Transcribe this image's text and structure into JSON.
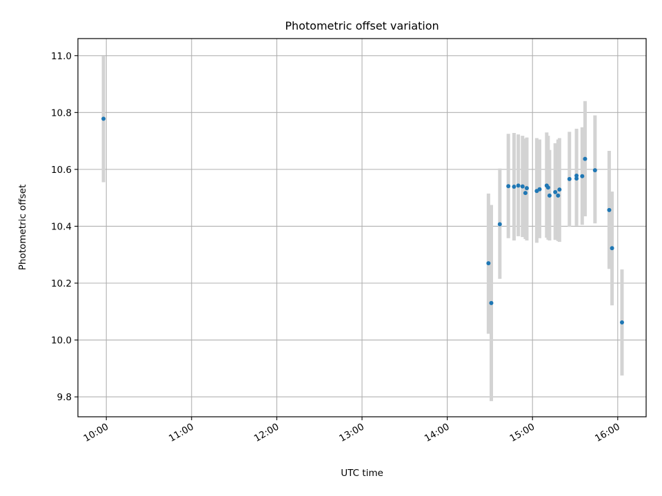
{
  "chart_data": {
    "type": "scatter",
    "title": "Photometric offset variation",
    "xlabel": "UTC time",
    "ylabel": "Photometric offset",
    "x_axis": "time",
    "xlim": [
      "09:40",
      "16:20"
    ],
    "ylim": [
      9.73,
      11.06
    ],
    "grid": true,
    "xticks": [
      "10:00",
      "11:00",
      "12:00",
      "13:00",
      "14:00",
      "15:00",
      "16:00"
    ],
    "yticks": [
      "9.8",
      "10.0",
      "10.2",
      "10.4",
      "10.6",
      "10.8",
      "11.0"
    ],
    "marker_color": "#1f77b4",
    "errorbar_color": "#d3d3d3",
    "points": [
      {
        "x": "09:58",
        "y": 10.778,
        "low": 10.555,
        "high": 10.998
      },
      {
        "x": "14:29",
        "y": 10.27,
        "low": 10.022,
        "high": 10.515
      },
      {
        "x": "14:31",
        "y": 10.13,
        "low": 9.785,
        "high": 10.475
      },
      {
        "x": "14:37",
        "y": 10.407,
        "low": 10.215,
        "high": 10.603
      },
      {
        "x": "14:43",
        "y": 10.541,
        "low": 10.358,
        "high": 10.725
      },
      {
        "x": "14:47",
        "y": 10.539,
        "low": 10.35,
        "high": 10.728
      },
      {
        "x": "14:50",
        "y": 10.543,
        "low": 10.365,
        "high": 10.723
      },
      {
        "x": "14:53",
        "y": 10.54,
        "low": 10.362,
        "high": 10.718
      },
      {
        "x": "14:55",
        "y": 10.517,
        "low": 10.355,
        "high": 10.708
      },
      {
        "x": "14:56",
        "y": 10.534,
        "low": 10.35,
        "high": 10.712
      },
      {
        "x": "15:03",
        "y": 10.524,
        "low": 10.342,
        "high": 10.71
      },
      {
        "x": "15:05",
        "y": 10.53,
        "low": 10.358,
        "high": 10.705
      },
      {
        "x": "15:10",
        "y": 10.543,
        "low": 10.36,
        "high": 10.73
      },
      {
        "x": "15:11",
        "y": 10.536,
        "low": 10.353,
        "high": 10.718
      },
      {
        "x": "15:12",
        "y": 10.508,
        "low": 10.35,
        "high": 10.668
      },
      {
        "x": "15:16",
        "y": 10.52,
        "low": 10.352,
        "high": 10.692
      },
      {
        "x": "15:18",
        "y": 10.508,
        "low": 10.348,
        "high": 10.705
      },
      {
        "x": "15:19",
        "y": 10.529,
        "low": 10.345,
        "high": 10.71
      },
      {
        "x": "15:26",
        "y": 10.566,
        "low": 10.398,
        "high": 10.732
      },
      {
        "x": "15:31",
        "y": 10.578,
        "low": 10.41,
        "high": 10.743
      },
      {
        "x": "15:31",
        "y": 10.568,
        "low": 10.402,
        "high": 10.738
      },
      {
        "x": "15:35",
        "y": 10.576,
        "low": 10.405,
        "high": 10.748
      },
      {
        "x": "15:37",
        "y": 10.637,
        "low": 10.435,
        "high": 10.84
      },
      {
        "x": "15:44",
        "y": 10.597,
        "low": 10.41,
        "high": 10.79
      },
      {
        "x": "15:54",
        "y": 10.457,
        "low": 10.25,
        "high": 10.665
      },
      {
        "x": "15:56",
        "y": 10.323,
        "low": 10.122,
        "high": 10.522
      },
      {
        "x": "16:03",
        "y": 10.062,
        "low": 9.875,
        "high": 10.248
      }
    ]
  }
}
